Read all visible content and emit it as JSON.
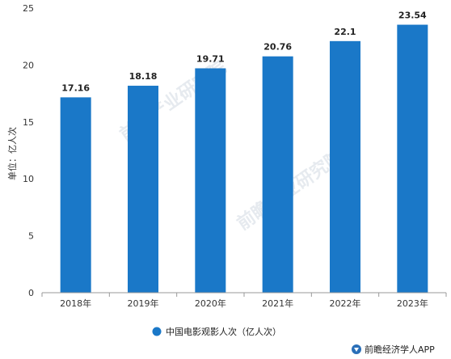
{
  "chart_data": {
    "type": "bar",
    "categories": [
      "2018年",
      "2019年",
      "2020年",
      "2021年",
      "2022年",
      "2023年"
    ],
    "series": [
      {
        "name": "中国电影观影人次（亿人次）",
        "values": [
          17.16,
          18.18,
          19.71,
          20.76,
          22.1,
          23.54
        ],
        "color": "#1a78c8"
      }
    ],
    "value_labels": [
      "17.16",
      "18.18",
      "19.71",
      "20.76",
      "22.1",
      "23.54"
    ],
    "ylabel": "单位：亿人次",
    "ylim": [
      0,
      25
    ],
    "yticks": [
      0,
      5,
      10,
      15,
      20,
      25
    ],
    "ytick_labels": [
      "0",
      "5",
      "10",
      "15",
      "20",
      "25"
    ],
    "grid": false,
    "legend_position": "bottom-center"
  },
  "watermark": {
    "text": "前瞻产业研究院",
    "logo_icon": "qianzhan-logo-icon"
  },
  "source": {
    "icon": "qianzhan-logo-icon",
    "text": "前瞻经济学人APP"
  },
  "colors": {
    "bar": "#1a78c8",
    "axis": "#999999",
    "text": "#333333",
    "watermark": "#b8c6d2"
  }
}
